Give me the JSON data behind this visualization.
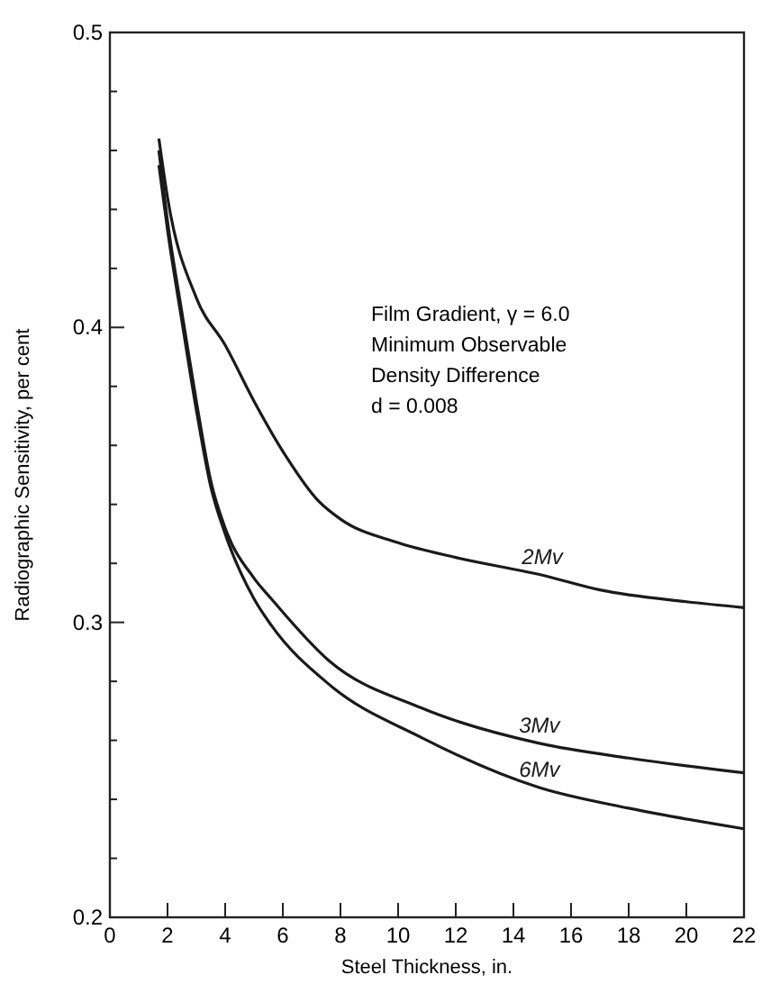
{
  "chart_data": {
    "type": "line",
    "xlabel": "Steel Thickness, in.",
    "ylabel": "Radiographic Sensitivity, per cent",
    "annotations": [
      "Film Gradient, γ = 6.0",
      "Minimum Observable",
      "Density Difference",
      "d = 0.008"
    ],
    "xlim": [
      0,
      22
    ],
    "xticks": [
      0,
      2,
      4,
      6,
      8,
      10,
      12,
      14,
      16,
      18,
      20,
      22
    ],
    "ylim": [
      0.2,
      0.5
    ],
    "yticks": [
      {
        "value": 0.2,
        "label": "0.2"
      },
      {
        "value": 0.22,
        "label": null
      },
      {
        "value": 0.24,
        "label": null
      },
      {
        "value": 0.26,
        "label": null
      },
      {
        "value": 0.28,
        "label": null
      },
      {
        "value": 0.3,
        "label": "0.3"
      },
      {
        "value": 0.32,
        "label": null
      },
      {
        "value": 0.34,
        "label": null
      },
      {
        "value": 0.36,
        "label": null
      },
      {
        "value": 0.38,
        "label": null
      },
      {
        "value": 0.4,
        "label": "0.4"
      },
      {
        "value": 0.42,
        "label": null
      },
      {
        "value": 0.44,
        "label": null
      },
      {
        "value": 0.46,
        "label": null
      },
      {
        "value": 0.48,
        "label": null
      },
      {
        "value": 0.5,
        "label": "0.5"
      }
    ],
    "grid": false,
    "legend": false,
    "marker": "none",
    "line_style": "solid",
    "series": [
      {
        "name": "2Mv",
        "color": "#1a1a1a",
        "x": [
          1.7,
          2,
          3,
          4,
          5,
          6,
          7.25,
          8,
          10,
          12,
          15,
          17,
          20,
          22
        ],
        "values": [
          0.464,
          0.444,
          0.41,
          0.394,
          0.375,
          0.358,
          0.341,
          0.335,
          0.327,
          0.322,
          0.316,
          0.311,
          0.307,
          0.305
        ]
      },
      {
        "name": "3Mv",
        "color": "#1a1a1a",
        "x": [
          1.7,
          2,
          2.5,
          3,
          3.5,
          4,
          5,
          5.6,
          7.6,
          10.8,
          14.9,
          18,
          22
        ],
        "values": [
          0.46,
          0.436,
          0.405,
          0.375,
          0.348,
          0.332,
          0.315,
          0.308,
          0.287,
          0.271,
          0.259,
          0.254,
          0.249
        ]
      },
      {
        "name": "6Mv",
        "color": "#1a1a1a",
        "x": [
          1.7,
          2,
          2.5,
          3,
          3.5,
          4,
          5,
          5.6,
          7.6,
          10.8,
          14.9,
          18,
          22
        ],
        "values": [
          0.455,
          0.433,
          0.402,
          0.372,
          0.346,
          0.33,
          0.308,
          0.299,
          0.279,
          0.261,
          0.244,
          0.237,
          0.23
        ]
      }
    ]
  }
}
